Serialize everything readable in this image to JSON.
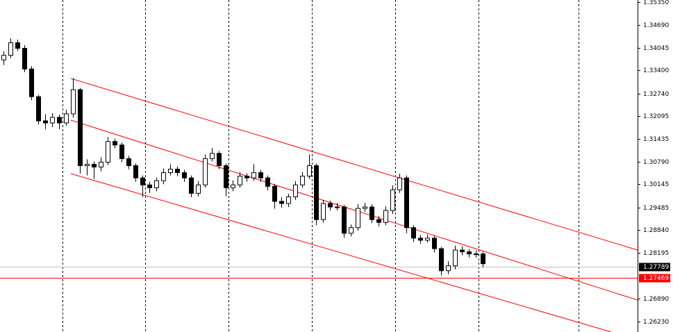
{
  "chart_data": {
    "type": "candlestick",
    "ylim": [
      1.2593,
      1.3541
    ],
    "yticks": [
      {
        "value": 1.3535,
        "label": "1.35350"
      },
      {
        "value": 1.3469,
        "label": "1.34690"
      },
      1.34045,
      {
        "value": 1.334,
        "label": "1.33400"
      },
      {
        "value": 1.3274,
        "label": "1.32740"
      },
      1.32095,
      1.31435,
      {
        "value": 1.3079,
        "label": "1.30790"
      },
      1.30145,
      1.29485,
      {
        "value": 1.2884,
        "label": "1.28840"
      },
      1.28195,
      {
        "value": 1.2689,
        "label": "1.26890"
      },
      {
        "value": 1.2623,
        "label": "1.26230"
      }
    ],
    "up_color": "#ffffff",
    "down_color": "#000000",
    "grid": false,
    "open": [
      1.337,
      1.3383,
      1.3419,
      1.3403,
      1.3344,
      1.3265,
      1.3196,
      1.319,
      1.3206,
      1.319,
      1.3216,
      1.3285,
      1.3068,
      1.3072,
      1.3064,
      1.3078,
      1.3137,
      1.3127,
      1.3088,
      1.3068,
      1.3033,
      1.3013,
      1.3005,
      1.3025,
      1.3048,
      1.3058,
      1.3048,
      1.3033,
      1.2989,
      1.3013,
      1.3088,
      1.3103,
      1.3068,
      1.3005,
      1.3013,
      1.3038,
      1.3033,
      1.3048,
      1.3033,
      1.3009,
      1.2966,
      1.296,
      1.2979,
      1.3013,
      1.3038,
      1.3068,
      1.2914,
      1.296,
      1.295,
      1.295,
      1.2875,
      1.2891,
      1.2946,
      1.295,
      1.2914,
      1.2906,
      1.294,
      1.2999,
      1.3033,
      1.2891,
      1.2861,
      1.2855,
      1.2861,
      1.2831,
      1.2768,
      1.2782,
      1.2827,
      1.2822,
      1.2816,
      1.2816
    ],
    "high": [
      1.3395,
      1.3432,
      1.3428,
      1.3412,
      1.3352,
      1.327,
      1.3215,
      1.3218,
      1.3214,
      1.3228,
      1.3318,
      1.329,
      1.3086,
      1.308,
      1.3092,
      1.315,
      1.3145,
      1.3134,
      1.3096,
      1.3074,
      1.304,
      1.3022,
      1.3034,
      1.306,
      1.3072,
      1.3066,
      1.3056,
      1.304,
      1.3024,
      1.31,
      1.3118,
      1.311,
      1.3074,
      1.3026,
      1.305,
      1.3046,
      1.3072,
      1.3056,
      1.304,
      1.3016,
      1.2978,
      1.2988,
      1.3024,
      1.305,
      1.31,
      1.3074,
      1.297,
      1.2968,
      1.2962,
      1.2956,
      1.29,
      1.2958,
      1.2962,
      1.2958,
      1.2924,
      1.2952,
      1.3012,
      1.3045,
      1.304,
      1.2898,
      1.287,
      1.2872,
      1.2868,
      1.2836,
      1.2795,
      1.284,
      1.2838,
      1.283,
      1.2826,
      1.2822
    ],
    "low": [
      1.3355,
      1.3375,
      1.3395,
      1.3335,
      1.3255,
      1.3185,
      1.3172,
      1.3178,
      1.3172,
      1.3182,
      1.3205,
      1.3045,
      1.304,
      1.303,
      1.3052,
      1.307,
      1.3118,
      1.3078,
      1.3058,
      1.3022,
      1.2978,
      1.299,
      1.2995,
      1.3015,
      1.304,
      1.3038,
      1.3022,
      1.2978,
      1.298,
      1.3005,
      1.308,
      1.3058,
      1.298,
      1.2995,
      1.3005,
      1.3022,
      1.3024,
      1.3022,
      1.2998,
      1.2945,
      1.2948,
      1.295,
      1.297,
      1.3005,
      1.303,
      1.2898,
      1.2905,
      1.294,
      1.294,
      1.2862,
      1.2866,
      1.2882,
      1.2936,
      1.2904,
      1.2895,
      1.2898,
      1.293,
      1.299,
      1.2875,
      1.285,
      1.2845,
      1.2848,
      1.282,
      1.2755,
      1.2758,
      1.2772,
      1.2812,
      1.2806,
      1.2805,
      1.2778
    ],
    "close": [
      1.3383,
      1.3419,
      1.3403,
      1.3344,
      1.3265,
      1.3196,
      1.319,
      1.3206,
      1.319,
      1.3216,
      1.3285,
      1.3068,
      1.3072,
      1.3064,
      1.3078,
      1.3137,
      1.3127,
      1.3088,
      1.3068,
      1.3033,
      1.3013,
      1.3005,
      1.3025,
      1.3048,
      1.3058,
      1.3048,
      1.3033,
      1.2989,
      1.3013,
      1.3088,
      1.3103,
      1.3068,
      1.3005,
      1.3013,
      1.3038,
      1.3033,
      1.3048,
      1.3033,
      1.3009,
      1.2966,
      1.296,
      1.2979,
      1.3013,
      1.3038,
      1.3068,
      1.2914,
      1.296,
      1.295,
      1.295,
      1.2875,
      1.2891,
      1.2946,
      1.295,
      1.2914,
      1.2906,
      1.294,
      1.2999,
      1.3033,
      1.2891,
      1.2861,
      1.2855,
      1.2861,
      1.2831,
      1.2768,
      1.2782,
      1.2827,
      1.2822,
      1.2816,
      1.2816,
      1.2788
    ],
    "price_lines": [
      {
        "value": 1.27789,
        "color": "#c0c0c0",
        "box": "#000000"
      },
      {
        "value": 1.27469,
        "color": "#ff0000",
        "box": "#ff0000"
      }
    ]
  }
}
